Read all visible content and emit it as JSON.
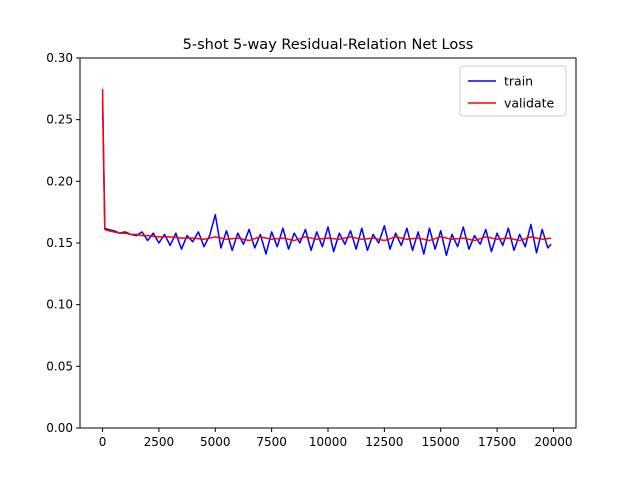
{
  "chart_data": {
    "type": "line",
    "title": "5-shot 5-way Residual-Relation Net Loss",
    "xlabel": "",
    "ylabel": "",
    "xlim": [
      -1000,
      21000
    ],
    "ylim": [
      0.0,
      0.3
    ],
    "x_ticks": [
      0,
      2500,
      5000,
      7500,
      10000,
      12500,
      15000,
      17500,
      20000
    ],
    "y_ticks": [
      0.0,
      0.05,
      0.1,
      0.15,
      0.2,
      0.25,
      0.3
    ],
    "x_tick_labels": [
      "0",
      "2500",
      "5000",
      "7500",
      "10000",
      "12500",
      "15000",
      "17500",
      "20000"
    ],
    "y_tick_labels": [
      "0.00",
      "0.05",
      "0.10",
      "0.15",
      "0.20",
      "0.25",
      "0.30"
    ],
    "grid": false,
    "legend_position": "top-right",
    "series": [
      {
        "name": "train",
        "color": "#0000ff",
        "x": [
          0,
          100,
          250,
          500,
          750,
          1000,
          1250,
          1500,
          1750,
          2000,
          2250,
          2500,
          2750,
          3000,
          3250,
          3500,
          3750,
          4000,
          4250,
          4500,
          4750,
          5000,
          5250,
          5500,
          5750,
          6000,
          6250,
          6500,
          6750,
          7000,
          7250,
          7500,
          7750,
          8000,
          8250,
          8500,
          8750,
          9000,
          9250,
          9500,
          9750,
          10000,
          10250,
          10500,
          10750,
          11000,
          11250,
          11500,
          11750,
          12000,
          12250,
          12500,
          12750,
          13000,
          13250,
          13500,
          13750,
          14000,
          14250,
          14500,
          14750,
          15000,
          15250,
          15500,
          15750,
          16000,
          16250,
          16500,
          16750,
          17000,
          17250,
          17500,
          17750,
          18000,
          18250,
          18500,
          18750,
          19000,
          19250,
          19500,
          19750,
          19900
        ],
        "y": [
          0.266,
          0.162,
          0.161,
          0.16,
          0.158,
          0.159,
          0.157,
          0.156,
          0.159,
          0.152,
          0.158,
          0.15,
          0.157,
          0.148,
          0.158,
          0.145,
          0.156,
          0.151,
          0.159,
          0.147,
          0.156,
          0.173,
          0.146,
          0.16,
          0.144,
          0.158,
          0.149,
          0.161,
          0.146,
          0.157,
          0.141,
          0.159,
          0.147,
          0.162,
          0.145,
          0.158,
          0.15,
          0.161,
          0.144,
          0.159,
          0.147,
          0.163,
          0.143,
          0.158,
          0.149,
          0.16,
          0.145,
          0.162,
          0.144,
          0.157,
          0.15,
          0.164,
          0.145,
          0.158,
          0.148,
          0.162,
          0.144,
          0.159,
          0.141,
          0.162,
          0.145,
          0.16,
          0.14,
          0.157,
          0.147,
          0.163,
          0.145,
          0.156,
          0.149,
          0.161,
          0.143,
          0.158,
          0.148,
          0.162,
          0.144,
          0.157,
          0.147,
          0.165,
          0.142,
          0.161,
          0.146,
          0.149
        ]
      },
      {
        "name": "validate",
        "color": "#ff0000",
        "x": [
          0,
          100,
          250,
          500,
          750,
          1000,
          1250,
          1500,
          1750,
          2000,
          2500,
          3000,
          3500,
          4000,
          4500,
          5000,
          5500,
          6000,
          6500,
          7000,
          7500,
          8000,
          8500,
          9000,
          9500,
          10000,
          10500,
          11000,
          11500,
          12000,
          12500,
          13000,
          13500,
          14000,
          14500,
          15000,
          15500,
          16000,
          16500,
          17000,
          17500,
          18000,
          18500,
          19000,
          19500,
          19900
        ],
        "y": [
          0.275,
          0.161,
          0.16,
          0.159,
          0.158,
          0.158,
          0.157,
          0.157,
          0.156,
          0.156,
          0.155,
          0.155,
          0.154,
          0.154,
          0.153,
          0.155,
          0.153,
          0.154,
          0.152,
          0.155,
          0.153,
          0.154,
          0.152,
          0.155,
          0.153,
          0.154,
          0.153,
          0.155,
          0.153,
          0.154,
          0.152,
          0.155,
          0.153,
          0.154,
          0.152,
          0.155,
          0.153,
          0.154,
          0.152,
          0.155,
          0.153,
          0.154,
          0.152,
          0.155,
          0.153,
          0.154
        ]
      }
    ]
  }
}
